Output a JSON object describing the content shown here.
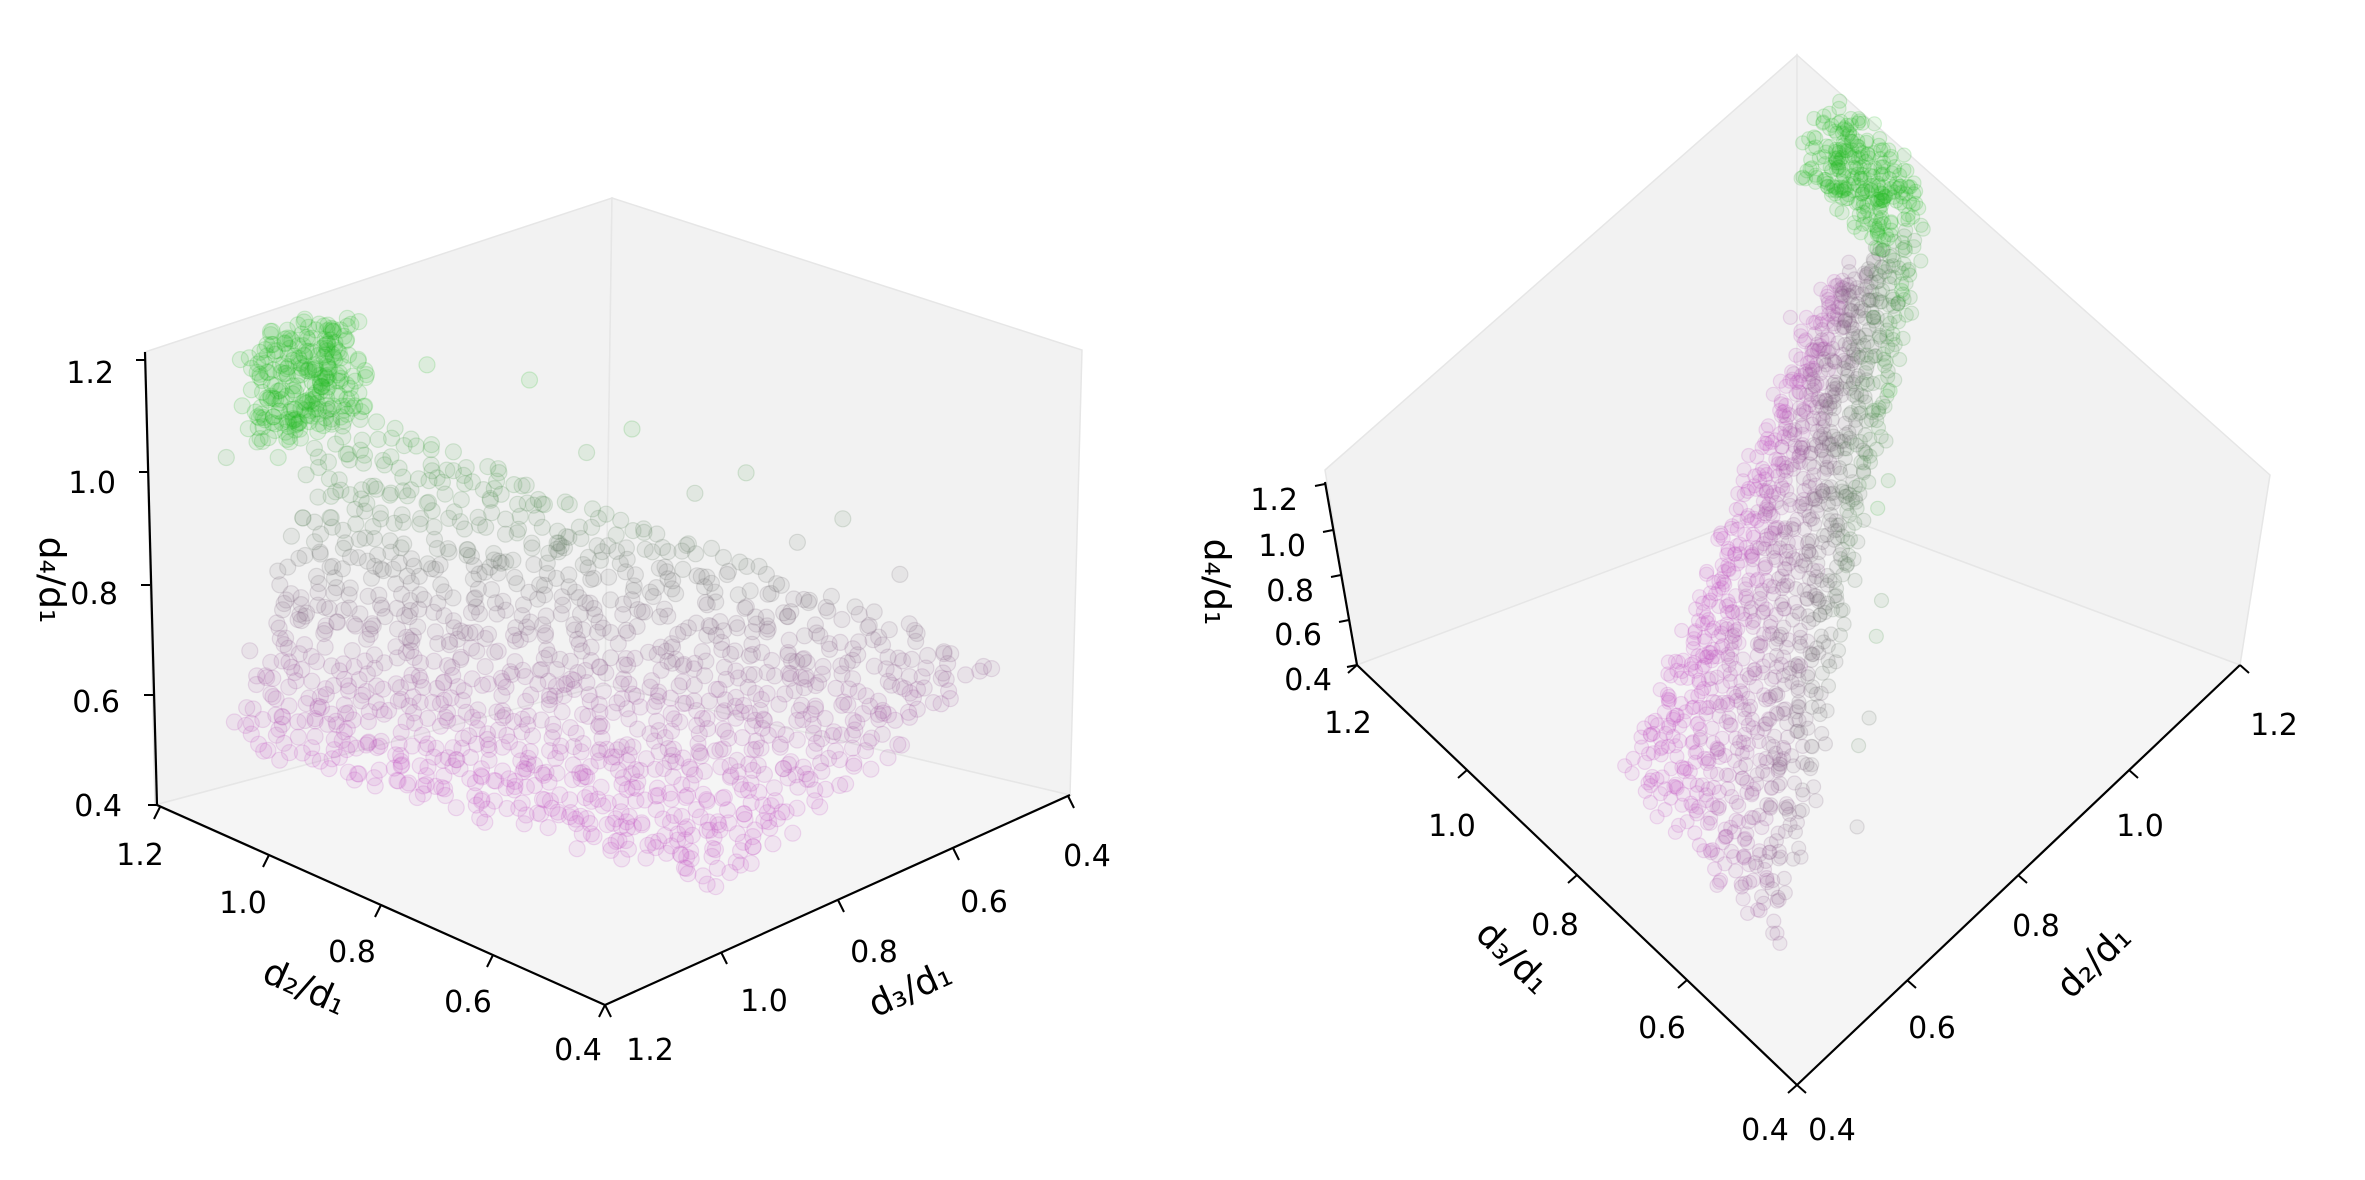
{
  "chart_data": [
    {
      "type": "scatter",
      "panel": "left",
      "title": "",
      "xlabel": "d₂/d₁",
      "ylabel": "d₃/d₁",
      "zlabel": "d₄/d₁",
      "xlim": [
        0.4,
        1.2
      ],
      "ylim": [
        0.4,
        1.2
      ],
      "zlim": [
        0.4,
        1.2
      ],
      "x_ticks": [
        "0.4",
        "0.6",
        "0.8",
        "1.0",
        "1.2"
      ],
      "y_ticks": [
        "0.4",
        "0.6",
        "0.8",
        "1.0",
        "1.2"
      ],
      "z_ticks": [
        "0.4",
        "0.6",
        "0.8",
        "1.0",
        "1.2"
      ],
      "grid": false,
      "marker": "circle",
      "marker_alpha": 0.1,
      "colormap": [
        "#c050c0",
        "#6a6a6a",
        "#22bb22"
      ],
      "color_by": "z",
      "series": [
        {
          "points_xyz_sample": [
            [
              1.13,
              0.98,
              1.18
            ],
            [
              1.15,
              1.02,
              1.15
            ],
            [
              1.1,
              0.95,
              1.12
            ],
            [
              1.17,
              1.05,
              1.05
            ],
            [
              1.18,
              1.1,
              0.98
            ],
            [
              1.05,
              0.88,
              1.1
            ],
            [
              0.95,
              0.8,
              1.08
            ],
            [
              0.85,
              0.72,
              1.0
            ],
            [
              0.75,
              0.62,
              0.92
            ],
            [
              0.65,
              0.55,
              0.85
            ],
            [
              0.9,
              0.75,
              0.95
            ],
            [
              0.8,
              0.66,
              0.88
            ],
            [
              0.7,
              0.58,
              0.8
            ],
            [
              0.6,
              0.5,
              0.75
            ],
            [
              1.0,
              0.85,
              0.9
            ],
            [
              1.05,
              0.92,
              0.8
            ],
            [
              1.1,
              1.0,
              0.7
            ],
            [
              1.12,
              1.05,
              0.62
            ],
            [
              0.95,
              0.9,
              0.65
            ],
            [
              0.85,
              0.82,
              0.6
            ],
            [
              0.75,
              0.75,
              0.58
            ],
            [
              0.65,
              0.68,
              0.6
            ],
            [
              0.55,
              0.62,
              0.62
            ],
            [
              0.5,
              0.58,
              0.65
            ],
            [
              1.08,
              1.1,
              0.55
            ],
            [
              1.0,
              1.05,
              0.52
            ],
            [
              0.9,
              0.98,
              0.5
            ],
            [
              0.8,
              0.92,
              0.5
            ],
            [
              0.7,
              0.85,
              0.52
            ],
            [
              0.6,
              0.78,
              0.55
            ]
          ]
        }
      ]
    },
    {
      "type": "scatter",
      "panel": "right",
      "title": "",
      "xlabel": "d₂/d₁",
      "ylabel": "d₃/d₁",
      "zlabel": "d₄/d₁",
      "xlim": [
        0.4,
        1.2
      ],
      "ylim": [
        0.4,
        1.2
      ],
      "zlim": [
        0.4,
        1.2
      ],
      "x_ticks": [
        "0.4",
        "0.6",
        "0.8",
        "1.0",
        "1.2"
      ],
      "y_ticks": [
        "0.4",
        "0.6",
        "0.8",
        "1.0",
        "1.2"
      ],
      "z_ticks": [
        "0.4",
        "0.6",
        "0.8",
        "1.0",
        "1.2"
      ],
      "grid": false,
      "marker": "circle",
      "marker_alpha": 0.1,
      "colormap": [
        "#c050c0",
        "#6a6a6a",
        "#22bb22"
      ],
      "color_by": "z",
      "view": "same data viewed from above"
    }
  ]
}
